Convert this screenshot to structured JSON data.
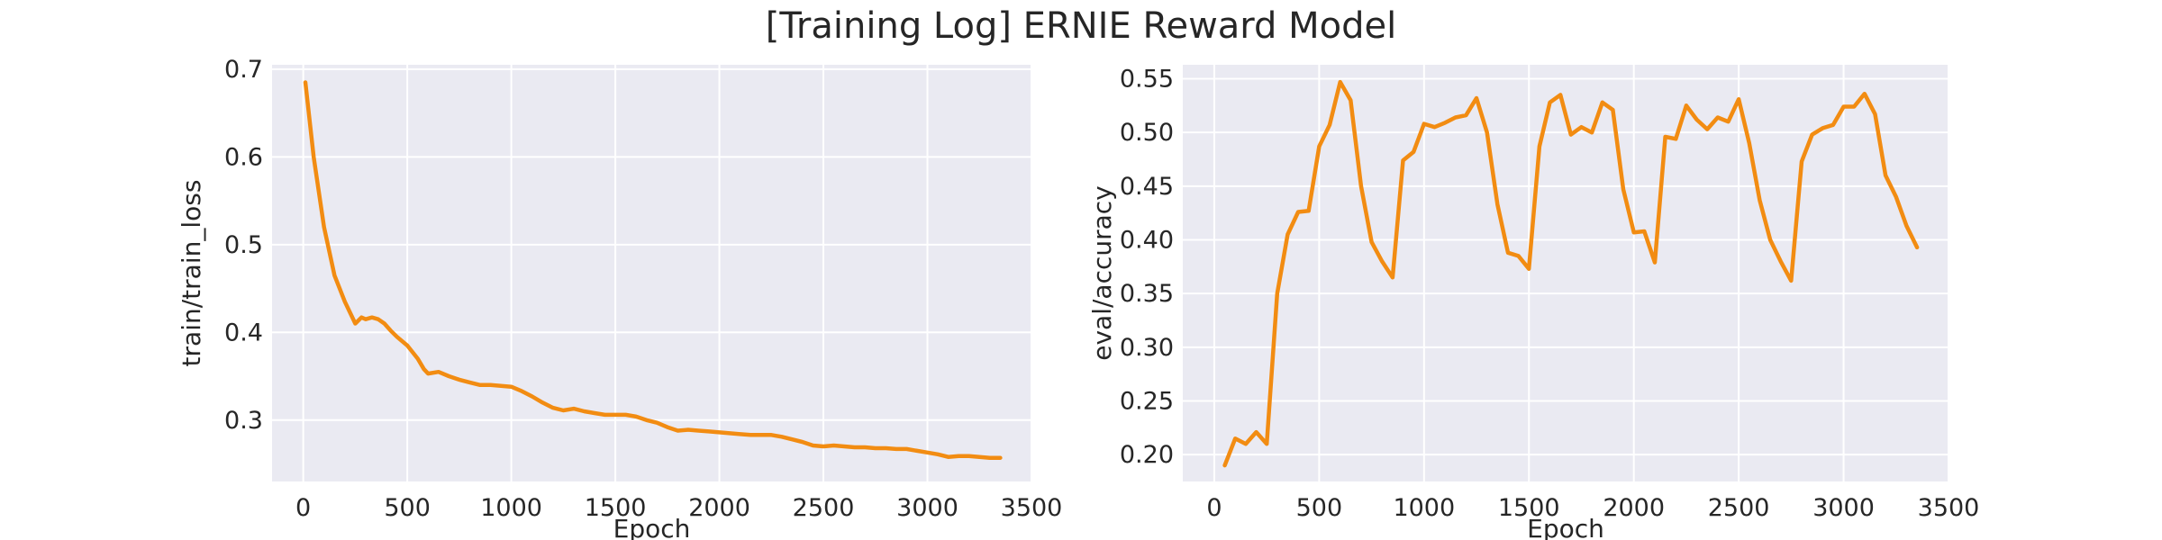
{
  "figure": {
    "title": "[Training Log] ERNIE Reward Model"
  },
  "colors": {
    "line": "#f28c12",
    "plot_bg": "#eaeaf2",
    "grid": "#ffffff",
    "text": "#262626"
  },
  "chart_data": [
    {
      "type": "line",
      "title": "",
      "xlabel": "Epoch",
      "ylabel": "train/train_loss",
      "xlim": [
        -150,
        3500
      ],
      "ylim": [
        0.23,
        0.705
      ],
      "xticks": [
        0,
        500,
        1000,
        1500,
        2000,
        2500,
        3000,
        3500
      ],
      "yticks": [
        0.3,
        0.4,
        0.5,
        0.6,
        0.7
      ],
      "ytick_labels": [
        "0.3",
        "0.4",
        "0.5",
        "0.6",
        "0.7"
      ],
      "grid": true,
      "series": [
        {
          "x": [
            10,
            50,
            100,
            150,
            200,
            250,
            280,
            300,
            330,
            360,
            390,
            420,
            450,
            500,
            550,
            580,
            600,
            650,
            700,
            750,
            800,
            850,
            900,
            950,
            1000,
            1050,
            1100,
            1150,
            1200,
            1250,
            1300,
            1350,
            1400,
            1450,
            1500,
            1550,
            1600,
            1650,
            1700,
            1750,
            1800,
            1850,
            1900,
            1950,
            2000,
            2050,
            2100,
            2150,
            2200,
            2250,
            2300,
            2350,
            2400,
            2450,
            2500,
            2550,
            2600,
            2650,
            2700,
            2750,
            2800,
            2850,
            2900,
            2950,
            3000,
            3050,
            3100,
            3150,
            3200,
            3250,
            3300,
            3350
          ],
          "y": [
            0.685,
            0.6,
            0.52,
            0.465,
            0.435,
            0.41,
            0.417,
            0.415,
            0.417,
            0.415,
            0.41,
            0.402,
            0.395,
            0.385,
            0.37,
            0.358,
            0.353,
            0.355,
            0.35,
            0.346,
            0.343,
            0.34,
            0.34,
            0.339,
            0.338,
            0.333,
            0.327,
            0.32,
            0.314,
            0.311,
            0.313,
            0.31,
            0.308,
            0.306,
            0.306,
            0.306,
            0.304,
            0.3,
            0.297,
            0.292,
            0.288,
            0.289,
            0.288,
            0.287,
            0.286,
            0.285,
            0.284,
            0.283,
            0.283,
            0.283,
            0.281,
            0.278,
            0.275,
            0.271,
            0.27,
            0.271,
            0.27,
            0.269,
            0.269,
            0.268,
            0.268,
            0.267,
            0.267,
            0.265,
            0.263,
            0.261,
            0.258,
            0.259,
            0.259,
            0.258,
            0.257,
            0.257
          ]
        }
      ]
    },
    {
      "type": "line",
      "title": "",
      "xlabel": "Epoch",
      "ylabel": "eval/accuracy",
      "xlim": [
        -150,
        3500
      ],
      "ylim": [
        0.175,
        0.563
      ],
      "xticks": [
        0,
        500,
        1000,
        1500,
        2000,
        2500,
        3000,
        3500
      ],
      "yticks": [
        0.2,
        0.25,
        0.3,
        0.35,
        0.4,
        0.45,
        0.5,
        0.55
      ],
      "ytick_labels": [
        "0.20",
        "0.25",
        "0.30",
        "0.35",
        "0.40",
        "0.45",
        "0.50",
        "0.55"
      ],
      "grid": true,
      "series": [
        {
          "x": [
            50,
            100,
            150,
            200,
            250,
            300,
            350,
            400,
            450,
            500,
            550,
            600,
            650,
            700,
            750,
            800,
            850,
            900,
            950,
            1000,
            1050,
            1100,
            1150,
            1200,
            1250,
            1300,
            1350,
            1400,
            1450,
            1500,
            1550,
            1600,
            1650,
            1700,
            1750,
            1800,
            1850,
            1900,
            1950,
            2000,
            2050,
            2100,
            2150,
            2200,
            2250,
            2300,
            2350,
            2400,
            2450,
            2500,
            2550,
            2600,
            2650,
            2700,
            2750,
            2800,
            2850,
            2900,
            2950,
            3000,
            3050,
            3100,
            3150,
            3200,
            3250,
            3300,
            3350
          ],
          "y": [
            0.19,
            0.215,
            0.21,
            0.221,
            0.21,
            0.35,
            0.405,
            0.426,
            0.427,
            0.487,
            0.507,
            0.547,
            0.53,
            0.45,
            0.398,
            0.38,
            0.365,
            0.474,
            0.482,
            0.508,
            0.505,
            0.509,
            0.514,
            0.516,
            0.532,
            0.5,
            0.433,
            0.388,
            0.385,
            0.373,
            0.487,
            0.528,
            0.535,
            0.498,
            0.505,
            0.5,
            0.528,
            0.521,
            0.447,
            0.407,
            0.408,
            0.379,
            0.496,
            0.494,
            0.525,
            0.512,
            0.503,
            0.514,
            0.51,
            0.531,
            0.49,
            0.437,
            0.4,
            0.38,
            0.362,
            0.473,
            0.498,
            0.504,
            0.507,
            0.524,
            0.524,
            0.536,
            0.517,
            0.46,
            0.44,
            0.413,
            0.393
          ]
        }
      ]
    }
  ]
}
